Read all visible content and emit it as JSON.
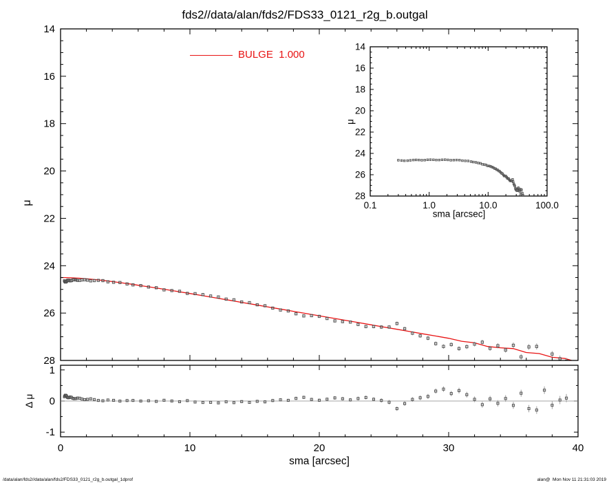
{
  "chart_data": {
    "type": "scatter",
    "title": "fds2//data/alan/fds2/FDS33_0121_r2g_b.outgal",
    "legend": {
      "label": "BULGE  1.000"
    },
    "colors": {
      "model": "#e81212",
      "marker": "#4a4a4a",
      "error": "#9e9e9e",
      "axis": "#000000"
    },
    "panels": {
      "main": {
        "ylabel": "μ",
        "xlim": [
          0,
          40
        ],
        "ylim": [
          28,
          14
        ],
        "yticks": [
          14,
          16,
          18,
          20,
          22,
          24,
          26,
          28
        ],
        "grid": false
      },
      "residual": {
        "ylabel": "Δ μ",
        "xlabel": "sma [arcsec]",
        "xlim": [
          0,
          40
        ],
        "ylim": [
          -1.15,
          1.15
        ],
        "yticks": [
          1,
          0,
          -1
        ],
        "xticks": [
          0,
          10,
          20,
          30,
          40
        ]
      },
      "inset": {
        "ylabel": "μ",
        "xlabel": "sma [arcsec]",
        "xscale": "log",
        "xlim": [
          0.1,
          100
        ],
        "ylim": [
          28,
          14
        ],
        "yticks": [
          14,
          16,
          18,
          20,
          22,
          24,
          26,
          28
        ],
        "xticks": [
          {
            "v": 0.1,
            "label": "0.1"
          },
          {
            "v": 1,
            "label": "1.0"
          },
          {
            "v": 10,
            "label": "10.0"
          },
          {
            "v": 100,
            "label": "100.0"
          }
        ]
      }
    },
    "series": {
      "residual_definition": "data minus model",
      "points": [
        [
          0.3,
          24.64,
          0.02
        ],
        [
          0.34,
          24.67,
          0.02
        ],
        [
          0.38,
          24.69,
          0.02
        ],
        [
          0.43,
          24.68,
          0.02
        ],
        [
          0.48,
          24.65,
          0.02
        ],
        [
          0.54,
          24.62,
          0.02
        ],
        [
          0.6,
          24.61,
          0.02
        ],
        [
          0.67,
          24.62,
          0.02
        ],
        [
          0.75,
          24.64,
          0.02
        ],
        [
          0.84,
          24.63,
          0.02
        ],
        [
          0.94,
          24.6,
          0.02
        ],
        [
          1.05,
          24.59,
          0.02
        ],
        [
          1.18,
          24.6,
          0.02
        ],
        [
          1.32,
          24.62,
          0.02
        ],
        [
          1.48,
          24.62,
          0.02
        ],
        [
          1.66,
          24.6,
          0.02
        ],
        [
          1.86,
          24.59,
          0.02
        ],
        [
          2.08,
          24.61,
          0.02
        ],
        [
          2.33,
          24.64,
          0.02
        ],
        [
          2.61,
          24.63,
          0.02
        ],
        [
          2.92,
          24.62,
          0.02
        ],
        [
          3.27,
          24.63,
          0.02
        ],
        [
          3.66,
          24.68,
          0.02
        ],
        [
          4.1,
          24.7,
          0.02
        ],
        [
          4.59,
          24.71,
          0.02
        ],
        [
          5.14,
          24.77,
          0.02
        ],
        [
          5.6,
          24.81,
          0.015
        ],
        [
          6.2,
          24.84,
          0.015
        ],
        [
          6.8,
          24.9,
          0.015
        ],
        [
          7.4,
          24.93,
          0.015
        ],
        [
          8.0,
          25.02,
          0.015
        ],
        [
          8.6,
          25.05,
          0.015
        ],
        [
          9.2,
          25.08,
          0.02
        ],
        [
          9.8,
          25.17,
          0.02
        ],
        [
          10.4,
          25.18,
          0.02
        ],
        [
          11.0,
          25.22,
          0.02
        ],
        [
          11.6,
          25.28,
          0.02
        ],
        [
          12.2,
          25.32,
          0.02
        ],
        [
          12.8,
          25.41,
          0.02
        ],
        [
          13.4,
          25.44,
          0.02
        ],
        [
          14.0,
          25.53,
          0.02
        ],
        [
          14.6,
          25.56,
          0.02
        ],
        [
          15.2,
          25.65,
          0.025
        ],
        [
          15.8,
          25.69,
          0.025
        ],
        [
          16.4,
          25.79,
          0.025
        ],
        [
          17.0,
          25.87,
          0.025
        ],
        [
          17.6,
          25.91,
          0.025
        ],
        [
          18.2,
          26.03,
          0.03
        ],
        [
          18.8,
          26.12,
          0.03
        ],
        [
          19.4,
          26.11,
          0.03
        ],
        [
          20.0,
          26.14,
          0.03
        ],
        [
          20.6,
          26.23,
          0.03
        ],
        [
          21.2,
          26.33,
          0.035
        ],
        [
          21.8,
          26.36,
          0.035
        ],
        [
          22.4,
          26.38,
          0.035
        ],
        [
          23.0,
          26.48,
          0.04
        ],
        [
          23.6,
          26.57,
          0.04
        ],
        [
          24.2,
          26.57,
          0.04
        ],
        [
          24.8,
          26.59,
          0.045
        ],
        [
          25.4,
          26.59,
          0.05
        ],
        [
          26.0,
          26.44,
          0.05
        ],
        [
          26.6,
          26.66,
          0.05
        ],
        [
          27.2,
          26.85,
          0.055
        ],
        [
          27.8,
          26.96,
          0.055
        ],
        [
          28.4,
          27.06,
          0.06
        ],
        [
          29.0,
          27.29,
          0.06
        ],
        [
          29.6,
          27.41,
          0.065
        ],
        [
          30.2,
          27.33,
          0.065
        ],
        [
          30.8,
          27.5,
          0.07
        ],
        [
          31.4,
          27.42,
          0.07
        ],
        [
          32.0,
          27.31,
          0.07
        ],
        [
          32.6,
          27.23,
          0.075
        ],
        [
          33.2,
          27.49,
          0.075
        ],
        [
          33.8,
          27.38,
          0.08
        ],
        [
          34.4,
          27.56,
          0.085
        ],
        [
          35.0,
          27.36,
          0.09
        ],
        [
          35.6,
          27.85,
          0.09
        ],
        [
          36.2,
          27.43,
          0.095
        ],
        [
          36.8,
          27.41,
          0.1
        ],
        [
          37.4,
          28.12,
          0.1
        ],
        [
          38.0,
          27.73,
          0.1
        ],
        [
          38.6,
          27.93,
          0.11
        ],
        [
          39.1,
          28.03,
          0.11
        ]
      ],
      "model": {
        "name": "BULGE",
        "points": [
          [
            0,
            24.5
          ],
          [
            0.5,
            24.504
          ],
          [
            1,
            24.514
          ],
          [
            1.5,
            24.53
          ],
          [
            2,
            24.551
          ],
          [
            2.5,
            24.576
          ],
          [
            3,
            24.605
          ],
          [
            3.5,
            24.636
          ],
          [
            4,
            24.67
          ],
          [
            4.5,
            24.706
          ],
          [
            5,
            24.744
          ],
          [
            5.5,
            24.783
          ],
          [
            6,
            24.824
          ],
          [
            6.5,
            24.865
          ],
          [
            7,
            24.908
          ],
          [
            7.5,
            24.951
          ],
          [
            8,
            24.995
          ],
          [
            9,
            25.084
          ],
          [
            10,
            25.175
          ],
          [
            11,
            25.267
          ],
          [
            12,
            25.36
          ],
          [
            13,
            25.454
          ],
          [
            14,
            25.548
          ],
          [
            15,
            25.642
          ],
          [
            16,
            25.736
          ],
          [
            17,
            25.831
          ],
          [
            18,
            25.926
          ],
          [
            19,
            26.021
          ],
          [
            20,
            26.115
          ],
          [
            21,
            26.21
          ],
          [
            22,
            26.305
          ],
          [
            23,
            26.4
          ],
          [
            24,
            26.495
          ],
          [
            25,
            26.59
          ],
          [
            26,
            26.685
          ],
          [
            27,
            26.78
          ],
          [
            28,
            26.875
          ],
          [
            29,
            26.97
          ],
          [
            30,
            27.065
          ],
          [
            31,
            27.19
          ],
          [
            32,
            27.255
          ],
          [
            33,
            27.41
          ],
          [
            34,
            27.465
          ],
          [
            35,
            27.5
          ],
          [
            36,
            27.665
          ],
          [
            37,
            27.71
          ],
          [
            38,
            27.865
          ],
          [
            39,
            27.92
          ],
          [
            39.8,
            28.05
          ]
        ]
      }
    }
  },
  "footer": {
    "left": "/data/alan/fds2//data/alan/fds2/FDS33_0121_r2g_b.outgal_1dprof",
    "right": "alan@  Mon Nov 11 21:31:03 2019"
  }
}
